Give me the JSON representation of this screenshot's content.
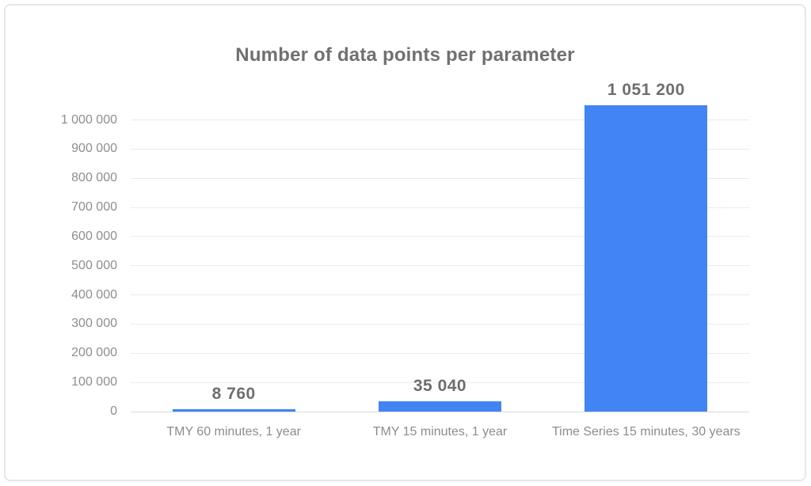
{
  "chart_data": {
    "type": "bar",
    "title": "Number of data points per parameter",
    "categories": [
      "TMY 60 minutes, 1 year",
      "TMY 15 minutes, 1 year",
      "Time Series 15 minutes, 30 years"
    ],
    "values": [
      8760,
      35040,
      1051200
    ],
    "value_labels": [
      "8 760",
      "35 040",
      "1 051 200"
    ],
    "xlabel": "",
    "ylabel": "",
    "ylim": [
      0,
      1000000
    ],
    "ytick_step": 100000,
    "ytick_labels": [
      "0",
      "100 000",
      "200 000",
      "300 000",
      "400 000",
      "500 000",
      "600 000",
      "700 000",
      "800 000",
      "900 000",
      "1 000 000"
    ],
    "grid": "horizontal",
    "legend": "none",
    "colors": {
      "bar": "#4284f3",
      "grid_line": "#ebebeb",
      "baseline": "#dbdbdb",
      "title_text": "#707070",
      "value_text": "#6e6e6e",
      "tick_text": "#8e8e8e",
      "category_text": "#8c8c8c",
      "card_border": "#e7e7e7",
      "background": "#ffffff"
    }
  }
}
